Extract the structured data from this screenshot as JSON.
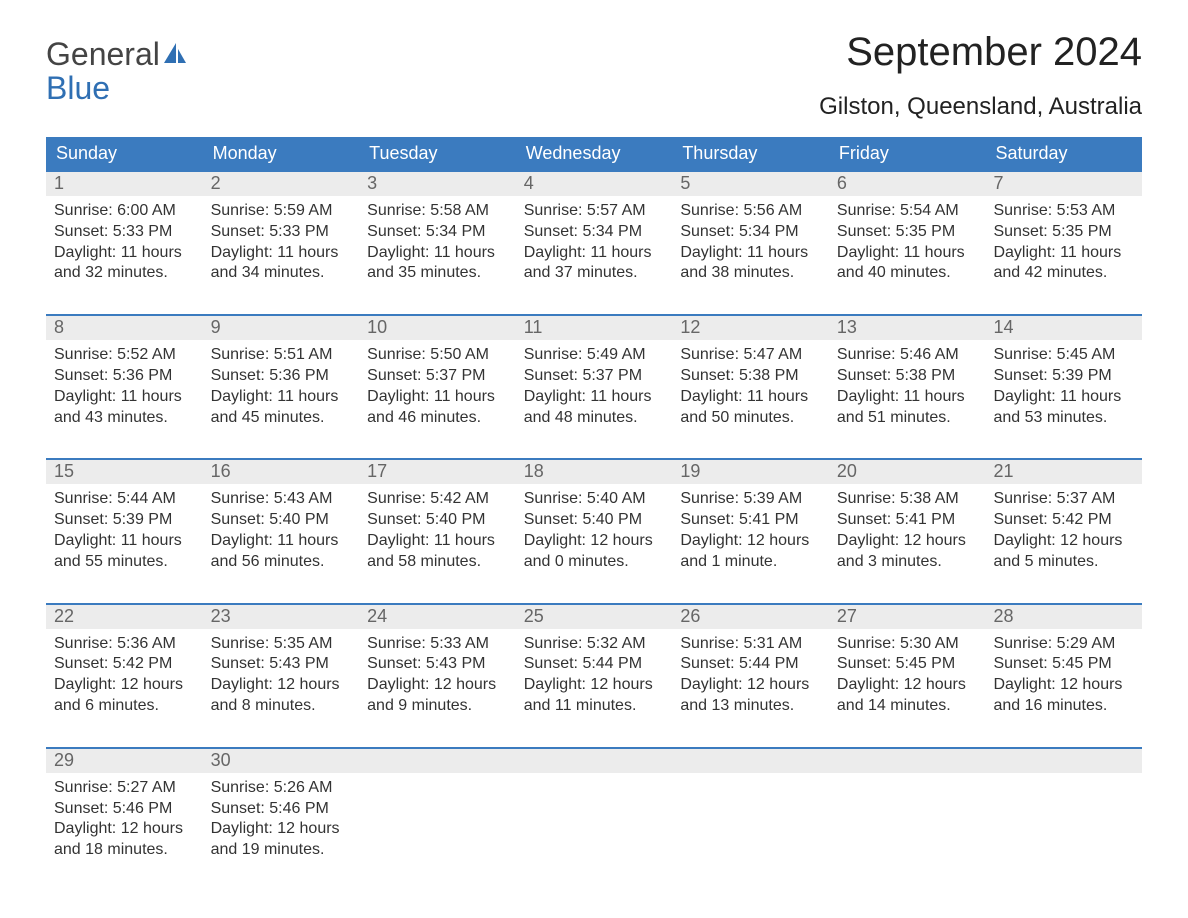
{
  "logo": {
    "word1": "General",
    "word2": "Blue"
  },
  "title": "September 2024",
  "location": "Gilston, Queensland, Australia",
  "colors": {
    "header_bg": "#3b7bbf",
    "header_text": "#ffffff",
    "row_border": "#3b7bbf",
    "daynum_bg": "#ececec",
    "daynum_text": "#666666",
    "body_text": "#333333",
    "logo_gray": "#444444",
    "logo_blue": "#2f6fb3",
    "page_bg": "#ffffff"
  },
  "day_names": [
    "Sunday",
    "Monday",
    "Tuesday",
    "Wednesday",
    "Thursday",
    "Friday",
    "Saturday"
  ],
  "weeks": [
    [
      {
        "n": "1",
        "sr": "6:00 AM",
        "ss": "5:33 PM",
        "dl": "11 hours and 32 minutes."
      },
      {
        "n": "2",
        "sr": "5:59 AM",
        "ss": "5:33 PM",
        "dl": "11 hours and 34 minutes."
      },
      {
        "n": "3",
        "sr": "5:58 AM",
        "ss": "5:34 PM",
        "dl": "11 hours and 35 minutes."
      },
      {
        "n": "4",
        "sr": "5:57 AM",
        "ss": "5:34 PM",
        "dl": "11 hours and 37 minutes."
      },
      {
        "n": "5",
        "sr": "5:56 AM",
        "ss": "5:34 PM",
        "dl": "11 hours and 38 minutes."
      },
      {
        "n": "6",
        "sr": "5:54 AM",
        "ss": "5:35 PM",
        "dl": "11 hours and 40 minutes."
      },
      {
        "n": "7",
        "sr": "5:53 AM",
        "ss": "5:35 PM",
        "dl": "11 hours and 42 minutes."
      }
    ],
    [
      {
        "n": "8",
        "sr": "5:52 AM",
        "ss": "5:36 PM",
        "dl": "11 hours and 43 minutes."
      },
      {
        "n": "9",
        "sr": "5:51 AM",
        "ss": "5:36 PM",
        "dl": "11 hours and 45 minutes."
      },
      {
        "n": "10",
        "sr": "5:50 AM",
        "ss": "5:37 PM",
        "dl": "11 hours and 46 minutes."
      },
      {
        "n": "11",
        "sr": "5:49 AM",
        "ss": "5:37 PM",
        "dl": "11 hours and 48 minutes."
      },
      {
        "n": "12",
        "sr": "5:47 AM",
        "ss": "5:38 PM",
        "dl": "11 hours and 50 minutes."
      },
      {
        "n": "13",
        "sr": "5:46 AM",
        "ss": "5:38 PM",
        "dl": "11 hours and 51 minutes."
      },
      {
        "n": "14",
        "sr": "5:45 AM",
        "ss": "5:39 PM",
        "dl": "11 hours and 53 minutes."
      }
    ],
    [
      {
        "n": "15",
        "sr": "5:44 AM",
        "ss": "5:39 PM",
        "dl": "11 hours and 55 minutes."
      },
      {
        "n": "16",
        "sr": "5:43 AM",
        "ss": "5:40 PM",
        "dl": "11 hours and 56 minutes."
      },
      {
        "n": "17",
        "sr": "5:42 AM",
        "ss": "5:40 PM",
        "dl": "11 hours and 58 minutes."
      },
      {
        "n": "18",
        "sr": "5:40 AM",
        "ss": "5:40 PM",
        "dl": "12 hours and 0 minutes."
      },
      {
        "n": "19",
        "sr": "5:39 AM",
        "ss": "5:41 PM",
        "dl": "12 hours and 1 minute."
      },
      {
        "n": "20",
        "sr": "5:38 AM",
        "ss": "5:41 PM",
        "dl": "12 hours and 3 minutes."
      },
      {
        "n": "21",
        "sr": "5:37 AM",
        "ss": "5:42 PM",
        "dl": "12 hours and 5 minutes."
      }
    ],
    [
      {
        "n": "22",
        "sr": "5:36 AM",
        "ss": "5:42 PM",
        "dl": "12 hours and 6 minutes."
      },
      {
        "n": "23",
        "sr": "5:35 AM",
        "ss": "5:43 PM",
        "dl": "12 hours and 8 minutes."
      },
      {
        "n": "24",
        "sr": "5:33 AM",
        "ss": "5:43 PM",
        "dl": "12 hours and 9 minutes."
      },
      {
        "n": "25",
        "sr": "5:32 AM",
        "ss": "5:44 PM",
        "dl": "12 hours and 11 minutes."
      },
      {
        "n": "26",
        "sr": "5:31 AM",
        "ss": "5:44 PM",
        "dl": "12 hours and 13 minutes."
      },
      {
        "n": "27",
        "sr": "5:30 AM",
        "ss": "5:45 PM",
        "dl": "12 hours and 14 minutes."
      },
      {
        "n": "28",
        "sr": "5:29 AM",
        "ss": "5:45 PM",
        "dl": "12 hours and 16 minutes."
      }
    ],
    [
      {
        "n": "29",
        "sr": "5:27 AM",
        "ss": "5:46 PM",
        "dl": "12 hours and 18 minutes."
      },
      {
        "n": "30",
        "sr": "5:26 AM",
        "ss": "5:46 PM",
        "dl": "12 hours and 19 minutes."
      },
      null,
      null,
      null,
      null,
      null
    ]
  ],
  "labels": {
    "sunrise": "Sunrise:",
    "sunset": "Sunset:",
    "daylight": "Daylight:"
  }
}
